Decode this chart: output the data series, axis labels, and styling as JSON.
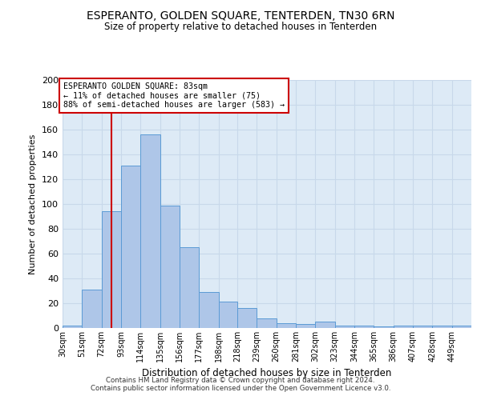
{
  "title": "ESPERANTO, GOLDEN SQUARE, TENTERDEN, TN30 6RN",
  "subtitle": "Size of property relative to detached houses in Tenterden",
  "xlabel": "Distribution of detached houses by size in Tenterden",
  "ylabel": "Number of detached properties",
  "footer_line1": "Contains HM Land Registry data © Crown copyright and database right 2024.",
  "footer_line2": "Contains public sector information licensed under the Open Government Licence v3.0.",
  "bin_labels": [
    "30sqm",
    "51sqm",
    "72sqm",
    "93sqm",
    "114sqm",
    "135sqm",
    "156sqm",
    "177sqm",
    "198sqm",
    "218sqm",
    "239sqm",
    "260sqm",
    "281sqm",
    "302sqm",
    "323sqm",
    "344sqm",
    "365sqm",
    "386sqm",
    "407sqm",
    "428sqm",
    "449sqm"
  ],
  "bin_edges": [
    30,
    51,
    72,
    93,
    114,
    135,
    156,
    177,
    198,
    218,
    239,
    260,
    281,
    302,
    323,
    344,
    365,
    386,
    407,
    428,
    449,
    470
  ],
  "bar_values": [
    2,
    31,
    94,
    131,
    156,
    99,
    65,
    29,
    21,
    16,
    8,
    4,
    3,
    5,
    2,
    2,
    1,
    2,
    2,
    2,
    2
  ],
  "bar_color": "#aec6e8",
  "bar_edge_color": "#5b9bd5",
  "grid_color": "#c8d8ea",
  "background_color": "#ddeaf6",
  "red_line_x": 83,
  "annotation_title": "ESPERANTO GOLDEN SQUARE: 83sqm",
  "annotation_line1": "← 11% of detached houses are smaller (75)",
  "annotation_line2": "88% of semi-detached houses are larger (583) →",
  "annotation_box_color": "#ffffff",
  "annotation_box_edge_color": "#cc0000",
  "ylim_max": 200,
  "yticks": [
    0,
    20,
    40,
    60,
    80,
    100,
    120,
    140,
    160,
    180,
    200
  ]
}
